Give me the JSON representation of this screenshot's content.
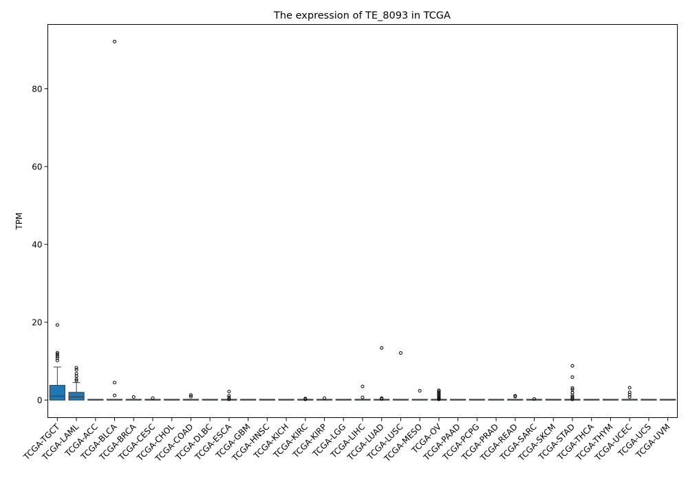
{
  "chart_data": {
    "type": "box",
    "title": "The expression of TE_8093 in TCGA",
    "xlabel": "",
    "ylabel": "TPM",
    "ylim": [
      -4.5,
      96.5
    ],
    "yticks": [
      0,
      20,
      40,
      60,
      80
    ],
    "grid": false,
    "box_color": "#1f77b4",
    "categories": [
      "TCGA-TGCT",
      "TCGA-LAML",
      "TCGA-ACC",
      "TCGA-BLCA",
      "TCGA-BRCA",
      "TCGA-CESC",
      "TCGA-CHOL",
      "TCGA-COAD",
      "TCGA-DLBC",
      "TCGA-ESCA",
      "TCGA-GBM",
      "TCGA-HNSC",
      "TCGA-KICH",
      "TCGA-KIRC",
      "TCGA-KIRP",
      "TCGA-LGG",
      "TCGA-LIHC",
      "TCGA-LUAD",
      "TCGA-LUSC",
      "TCGA-MESO",
      "TCGA-OV",
      "TCGA-PAAD",
      "TCGA-PCPG",
      "TCGA-PRAD",
      "TCGA-READ",
      "TCGA-SARC",
      "TCGA-SKCM",
      "TCGA-STAD",
      "TCGA-THCA",
      "TCGA-THYM",
      "TCGA-UCEC",
      "TCGA-UCS",
      "TCGA-UVM"
    ],
    "boxes": [
      {
        "whislo": 0,
        "q1": 0,
        "med": 1.0,
        "q3": 3.8,
        "whishi": 8.5,
        "fliers": [
          19.3,
          12.2,
          11.8,
          11.3,
          10.8,
          10.2
        ]
      },
      {
        "whislo": 0,
        "q1": 0,
        "med": 0.8,
        "q3": 2.0,
        "whishi": 4.5,
        "fliers": [
          8.3,
          7.8,
          6.8,
          6.2,
          5.4,
          5.0
        ]
      },
      {
        "whislo": 0,
        "q1": 0,
        "med": 0,
        "q3": 0,
        "whishi": 0,
        "fliers": []
      },
      {
        "whislo": 0,
        "q1": 0,
        "med": 0,
        "q3": 0.05,
        "whishi": 0.1,
        "fliers": [
          92.1,
          4.5,
          1.2
        ]
      },
      {
        "whislo": 0,
        "q1": 0,
        "med": 0,
        "q3": 0,
        "whishi": 0,
        "fliers": [
          0.8
        ]
      },
      {
        "whislo": 0,
        "q1": 0,
        "med": 0,
        "q3": 0,
        "whishi": 0,
        "fliers": [
          0.5
        ]
      },
      {
        "whislo": 0,
        "q1": 0,
        "med": 0,
        "q3": 0,
        "whishi": 0,
        "fliers": []
      },
      {
        "whislo": 0,
        "q1": 0,
        "med": 0,
        "q3": 0.05,
        "whishi": 0.1,
        "fliers": [
          1.3,
          0.9
        ]
      },
      {
        "whislo": 0,
        "q1": 0,
        "med": 0,
        "q3": 0,
        "whishi": 0,
        "fliers": []
      },
      {
        "whislo": 0,
        "q1": 0,
        "med": 0,
        "q3": 0.05,
        "whishi": 0.1,
        "fliers": [
          2.2,
          1.1,
          0.6,
          0.2
        ]
      },
      {
        "whislo": 0,
        "q1": 0,
        "med": 0,
        "q3": 0,
        "whishi": 0,
        "fliers": []
      },
      {
        "whislo": 0,
        "q1": 0,
        "med": 0,
        "q3": 0,
        "whishi": 0,
        "fliers": []
      },
      {
        "whislo": 0,
        "q1": 0,
        "med": 0,
        "q3": 0,
        "whishi": 0,
        "fliers": []
      },
      {
        "whislo": 0,
        "q1": 0,
        "med": 0,
        "q3": 0.05,
        "whishi": 0.1,
        "fliers": [
          0.4,
          0.2
        ]
      },
      {
        "whislo": 0,
        "q1": 0,
        "med": 0,
        "q3": 0,
        "whishi": 0,
        "fliers": [
          0.5
        ]
      },
      {
        "whislo": 0,
        "q1": 0,
        "med": 0,
        "q3": 0,
        "whishi": 0,
        "fliers": []
      },
      {
        "whislo": 0,
        "q1": 0,
        "med": 0,
        "q3": 0.05,
        "whishi": 0.1,
        "fliers": [
          3.5,
          0.7
        ]
      },
      {
        "whislo": 0,
        "q1": 0,
        "med": 0,
        "q3": 0.05,
        "whishi": 0.1,
        "fliers": [
          13.4,
          0.5,
          0.3
        ]
      },
      {
        "whislo": 0,
        "q1": 0,
        "med": 0,
        "q3": 0,
        "whishi": 0,
        "fliers": [
          12.1
        ]
      },
      {
        "whislo": 0,
        "q1": 0,
        "med": 0,
        "q3": 0,
        "whishi": 0,
        "fliers": [
          2.4
        ]
      },
      {
        "whislo": 0,
        "q1": 0,
        "med": 0,
        "q3": 0.05,
        "whishi": 0.1,
        "fliers": [
          2.5,
          2.2,
          1.9,
          1.6,
          1.3,
          1.0,
          0.7,
          0.4,
          0.2
        ]
      },
      {
        "whislo": 0,
        "q1": 0,
        "med": 0,
        "q3": 0,
        "whishi": 0,
        "fliers": []
      },
      {
        "whislo": 0,
        "q1": 0,
        "med": 0,
        "q3": 0,
        "whishi": 0,
        "fliers": []
      },
      {
        "whislo": 0,
        "q1": 0,
        "med": 0,
        "q3": 0,
        "whishi": 0,
        "fliers": []
      },
      {
        "whislo": 0,
        "q1": 0,
        "med": 0,
        "q3": 0.05,
        "whishi": 0.1,
        "fliers": [
          1.1,
          0.9
        ]
      },
      {
        "whislo": 0,
        "q1": 0,
        "med": 0,
        "q3": 0,
        "whishi": 0,
        "fliers": [
          0.3
        ]
      },
      {
        "whislo": 0,
        "q1": 0,
        "med": 0,
        "q3": 0,
        "whishi": 0,
        "fliers": []
      },
      {
        "whislo": 0,
        "q1": 0,
        "med": 0,
        "q3": 0.05,
        "whishi": 0.1,
        "fliers": [
          8.8,
          5.9,
          3.1,
          2.7,
          1.9,
          1.2,
          0.8,
          0.5,
          0.2
        ]
      },
      {
        "whislo": 0,
        "q1": 0,
        "med": 0,
        "q3": 0,
        "whishi": 0,
        "fliers": []
      },
      {
        "whislo": 0,
        "q1": 0,
        "med": 0,
        "q3": 0,
        "whishi": 0,
        "fliers": []
      },
      {
        "whislo": 0,
        "q1": 0,
        "med": 0,
        "q3": 0.05,
        "whishi": 0.1,
        "fliers": [
          3.2,
          2.0,
          1.4,
          0.8
        ]
      },
      {
        "whislo": 0,
        "q1": 0,
        "med": 0,
        "q3": 0,
        "whishi": 0,
        "fliers": []
      },
      {
        "whislo": 0,
        "q1": 0,
        "med": 0,
        "q3": 0,
        "whishi": 0,
        "fliers": []
      }
    ]
  }
}
